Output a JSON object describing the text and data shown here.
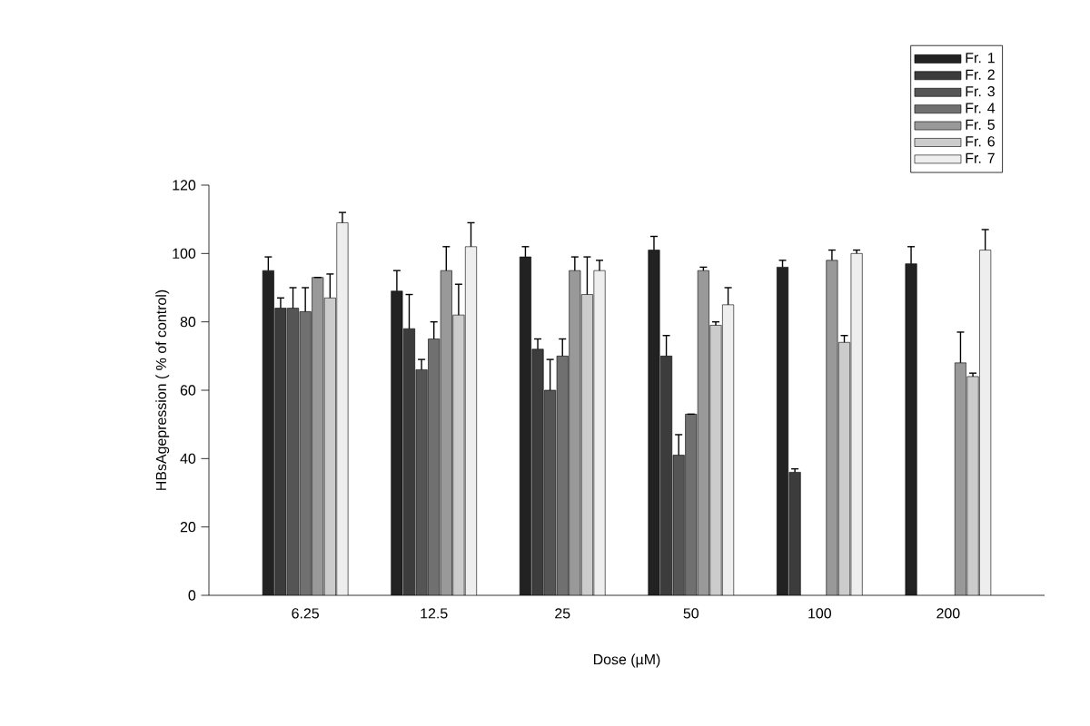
{
  "chart_data": {
    "type": "bar",
    "xlabel": "Dose (µM)",
    "ylabel": "HBsAgepression ( % of control)",
    "categories": [
      "6.25",
      "12.5",
      "25",
      "50",
      "100",
      "200"
    ],
    "ylim": [
      0,
      120
    ],
    "yticks": [
      0,
      20,
      40,
      60,
      80,
      100,
      120
    ],
    "grid": false,
    "legend": "top right",
    "series": [
      {
        "name": "Fr. 1",
        "color": "#222222",
        "values": [
          95,
          89,
          99,
          101,
          96,
          97
        ],
        "errors": [
          4,
          6,
          3,
          4,
          2,
          5
        ]
      },
      {
        "name": "Fr. 2",
        "color": "#3c3c3c",
        "values": [
          84,
          78,
          72,
          70,
          36,
          null
        ],
        "errors": [
          3,
          10,
          3,
          6,
          1,
          null
        ]
      },
      {
        "name": "Fr. 3",
        "color": "#555555",
        "values": [
          84,
          66,
          60,
          41,
          null,
          null
        ],
        "errors": [
          6,
          3,
          9,
          6,
          null,
          null
        ]
      },
      {
        "name": "Fr. 4",
        "color": "#707070",
        "values": [
          83,
          75,
          70,
          53,
          null,
          null
        ],
        "errors": [
          7,
          5,
          5,
          null,
          null,
          null
        ]
      },
      {
        "name": "Fr. 5",
        "color": "#999999",
        "values": [
          93,
          95,
          95,
          95,
          98,
          68
        ],
        "errors": [
          null,
          7,
          4,
          1,
          3,
          9
        ]
      },
      {
        "name": "Fr. 6",
        "color": "#cccccc",
        "values": [
          87,
          82,
          88,
          79,
          74,
          64
        ],
        "errors": [
          7,
          9,
          11,
          1,
          2,
          1
        ]
      },
      {
        "name": "Fr. 7",
        "color": "#eeeeee",
        "values": [
          109,
          102,
          95,
          85,
          100,
          101
        ],
        "errors": [
          3,
          7,
          3,
          5,
          1,
          6
        ]
      }
    ]
  }
}
